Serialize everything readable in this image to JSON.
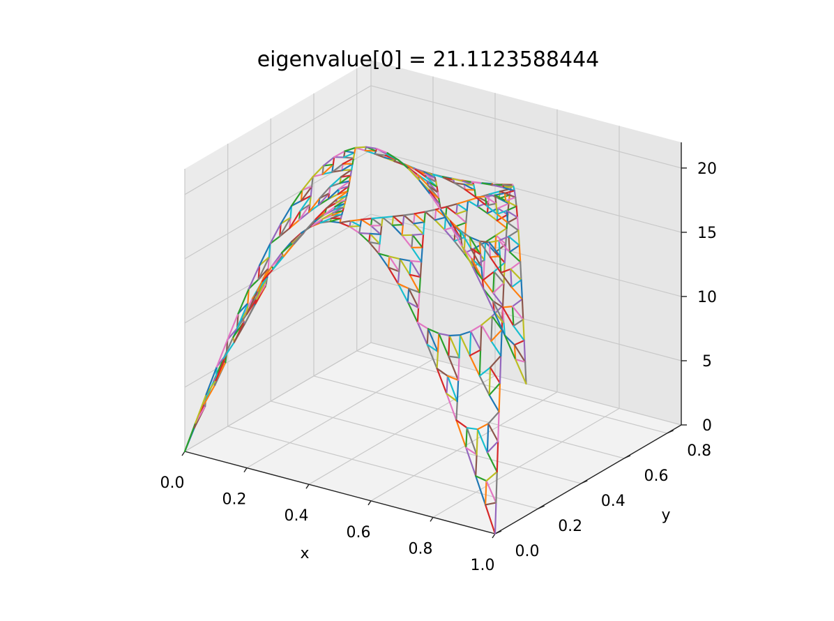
{
  "chart_data": {
    "type": "line",
    "projection": "3d",
    "title": "eigenvalue[0] = 21.1123588444",
    "xlabel": "x",
    "ylabel": "y",
    "zlabel": "",
    "xlim": [
      0.0,
      1.0
    ],
    "ylim": [
      0.0,
      0.866
    ],
    "zlim": [
      0,
      22
    ],
    "xticks": [
      "0.0",
      "0.2",
      "0.4",
      "0.6",
      "0.8",
      "1.0"
    ],
    "yticks": [
      "0.0",
      "0.2",
      "0.4",
      "0.6",
      "0.8"
    ],
    "zticks": [
      "0",
      "5",
      "10",
      "15",
      "20"
    ],
    "grid": true,
    "legend": "none",
    "colors": [
      "#1f77b4",
      "#ff7f0e",
      "#2ca02c",
      "#d62728",
      "#9467bd",
      "#8c564b",
      "#e377c2",
      "#7f7f7f",
      "#bcbd22",
      "#17becf"
    ],
    "surface": "eigenvector on Sierpinski gasket (level-5 graph), plotted as edge segments in 3D",
    "corners": [
      {
        "x": 0.0,
        "y": 0.0,
        "z": 0.0
      },
      {
        "x": 1.0,
        "y": 0.0,
        "z": 0.0
      },
      {
        "x": 0.5,
        "y": 0.866,
        "z": 0.0
      }
    ],
    "peak_points": [
      {
        "x": 0.5,
        "y": 0.0,
        "z": 21.0
      },
      {
        "x": 0.25,
        "y": 0.433,
        "z": 21.0
      },
      {
        "x": 0.75,
        "y": 0.433,
        "z": 21.0
      }
    ]
  }
}
